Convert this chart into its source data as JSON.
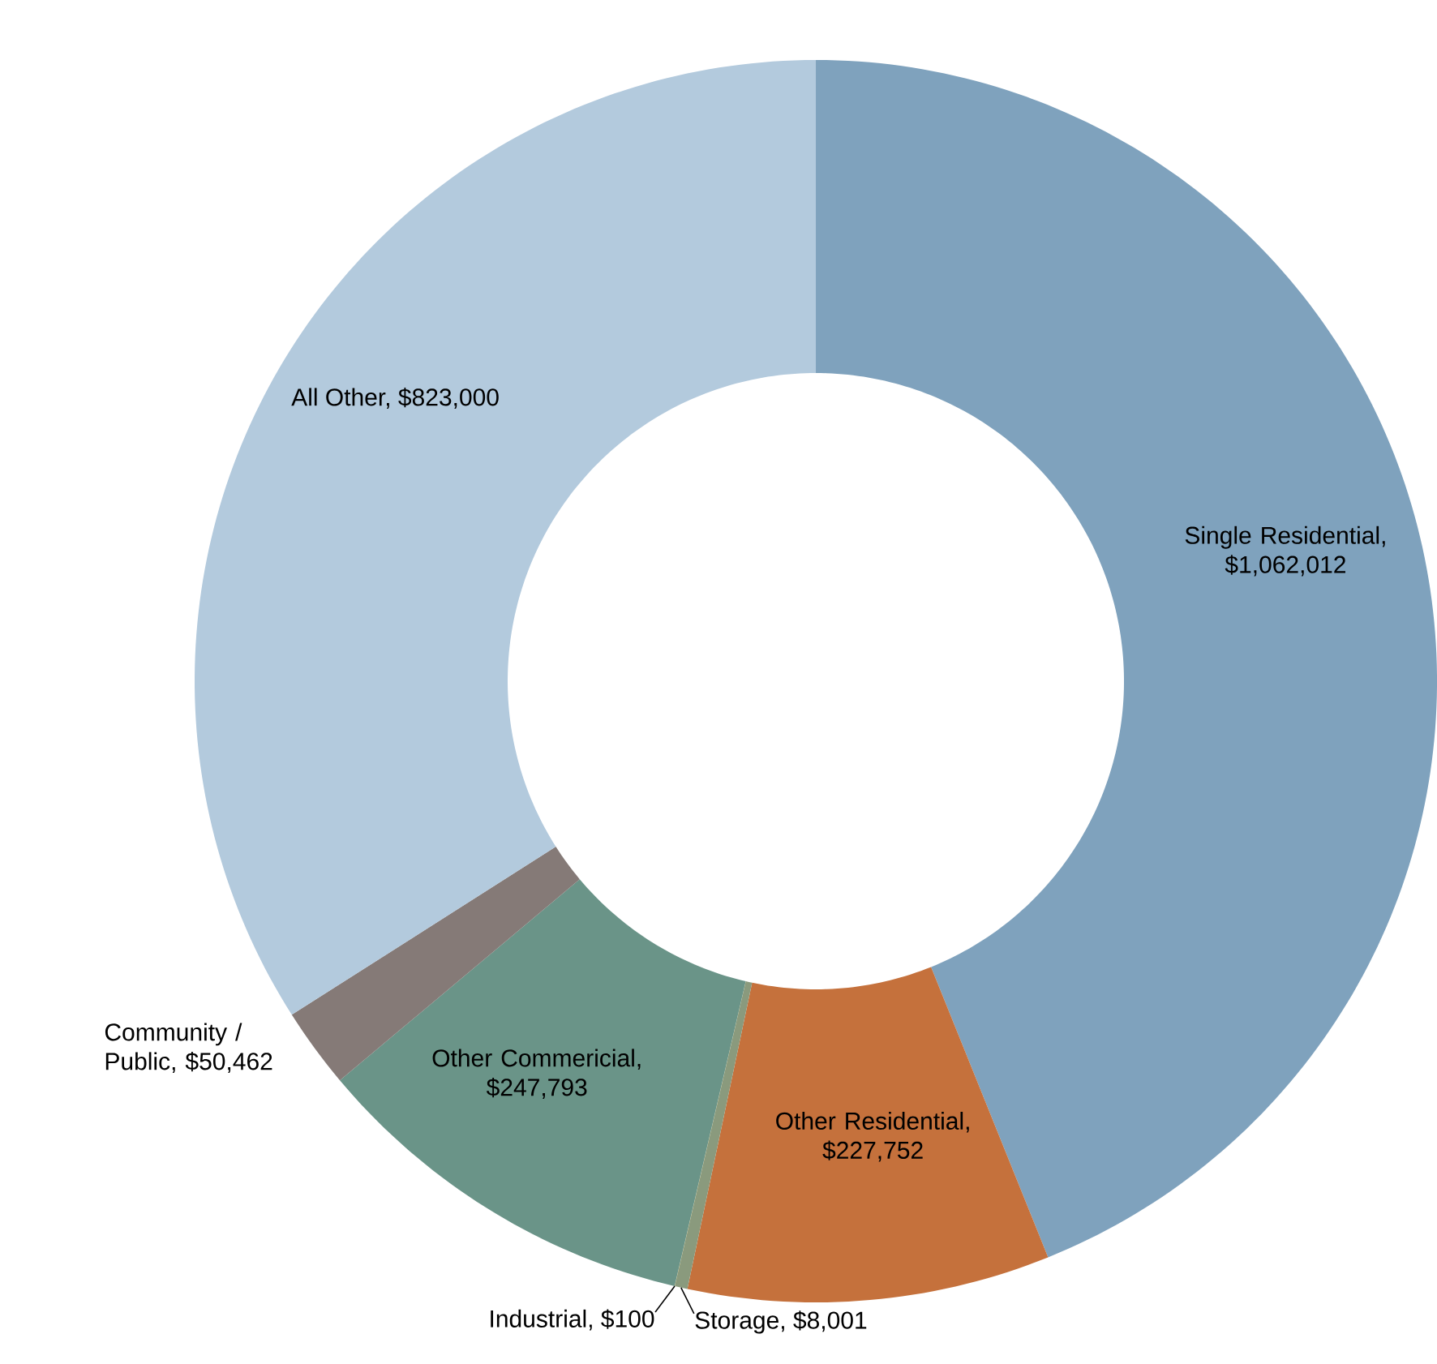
{
  "chart_data": {
    "type": "donut",
    "values": [
      1062012,
      227752,
      8001,
      100,
      247793,
      50462,
      823000
    ],
    "colors": [
      "#7fa2bd",
      "#c5713c",
      "#8a9a7d",
      "#e6b03c",
      "#6a9488",
      "#857a77",
      "#b3cadd"
    ],
    "value_labels": [
      "Single Residential, $1,062,012",
      "Other Residential, $227,752",
      "Storage, $8,001",
      "Industrial, $100",
      "Other Commericial, $247,793",
      "Community / Public, $50,462",
      "All Other, $823,000"
    ]
  }
}
